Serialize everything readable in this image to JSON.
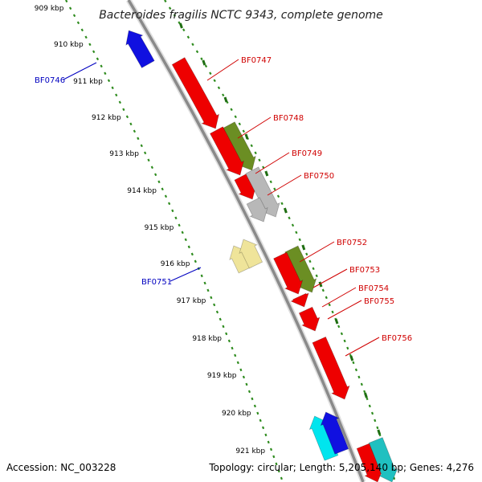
{
  "title": "Bacteroides fragilis NCTC 9343, complete genome",
  "footer": {
    "accession": "Accession: NC_003228",
    "summary": "Topology: circular; Length: 5,205,140 bp; Genes: 4,276"
  },
  "colors": {
    "backbone": "#8a8a8a",
    "ruler_dots": "#2e8b1e",
    "tick_major": "#1f6e12",
    "label_forward": "#d00000",
    "label_reverse": "#0000c0"
  },
  "ruler": {
    "ticks": [
      "909 kbp",
      "910 kbp",
      "911 kbp",
      "912 kbp",
      "913 kbp",
      "914 kbp",
      "915 kbp",
      "916 kbp",
      "917 kbp",
      "918 kbp",
      "919 kbp",
      "920 kbp",
      "921 kbp"
    ]
  },
  "genes": [
    {
      "name": "BF0746",
      "strand": "reverse",
      "color": "#1010e0",
      "labeled": true
    },
    {
      "name": "BF0747",
      "strand": "forward",
      "color": "#ee0000",
      "labeled": true
    },
    {
      "name": "BF0748",
      "strand": "forward",
      "color": "#6b8e23",
      "labeled": true
    },
    {
      "name": "BF0749",
      "strand": "forward",
      "color": "#ee0000",
      "labeled": true
    },
    {
      "name": "BF0750",
      "strand": "forward",
      "color": "#b8b8b8",
      "labeled": true
    },
    {
      "name": "BF0751",
      "strand": "reverse",
      "color": "#efe49a",
      "labeled": true
    },
    {
      "name": "BF0752",
      "strand": "forward",
      "color": "#6b8e23",
      "labeled": true
    },
    {
      "name": "BF0753",
      "strand": "forward",
      "color": "#ee0000",
      "labeled": true
    },
    {
      "name": "BF0754",
      "strand": "forward",
      "color": "#ee0000",
      "labeled": true
    },
    {
      "name": "BF0755",
      "strand": "forward",
      "color": "#ee0000",
      "labeled": true
    },
    {
      "name": "BF0756",
      "strand": "forward",
      "color": "#ee0000",
      "labeled": true
    }
  ]
}
